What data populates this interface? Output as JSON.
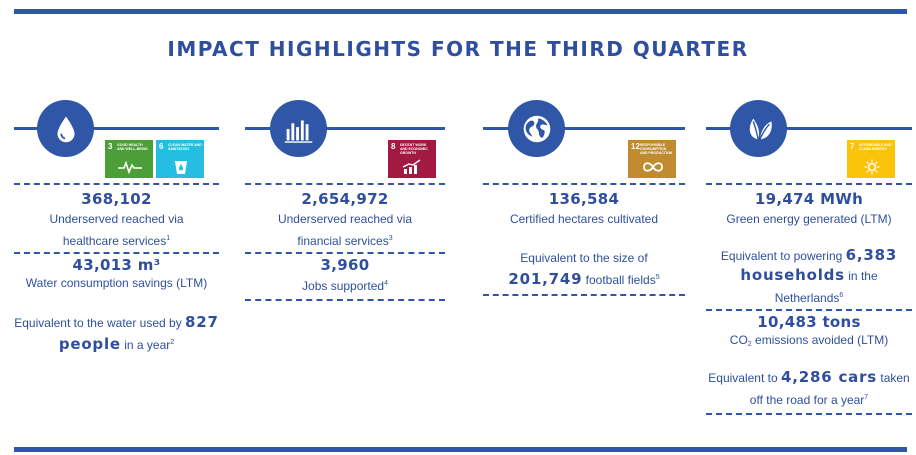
{
  "title": "IMPACT HIGHLIGHTS FOR THE THIRD QUARTER",
  "colors": {
    "primary": "#2f56a7",
    "sdg3": "#4c9f38",
    "sdg6": "#26bde2",
    "sdg8": "#a21942",
    "sdg12": "#bf8b2e",
    "sdg7": "#fcc30b"
  },
  "columns": [
    {
      "icon": "water-drop-icon",
      "sdgs": [
        {
          "num": "3",
          "label": "Good health and well-being",
          "color": "#4c9f38",
          "icon": "heartbeat-icon"
        },
        {
          "num": "6",
          "label": "Clean water and sanitation",
          "color": "#26bde2",
          "icon": "water-glass-icon"
        }
      ],
      "stat1_value": "368,102",
      "stat1_text_a": "Underserved reached via",
      "stat1_text_b": "healthcare services",
      "stat1_note": "1",
      "stat2_value": "43,013 m³",
      "stat2_text": "Water consumption savings (LTM)",
      "eq_prefix": "Equivalent to the water used by",
      "eq_value_a": "827",
      "eq_value_b": "people",
      "eq_suffix": "in a year",
      "eq_note": "2"
    },
    {
      "icon": "bar-chart-icon",
      "sdgs": [
        {
          "num": "8",
          "label": "Decent work and economic growth",
          "color": "#a21942",
          "icon": "growth-chart-icon"
        }
      ],
      "stat1_value": "2,654,972",
      "stat1_text_a": "Underserved reached via",
      "stat1_text_b": "financial services",
      "stat1_note": "3",
      "stat2_value": "3,960",
      "stat2_text": "Jobs supported",
      "stat2_note": "4"
    },
    {
      "icon": "globe-icon",
      "sdgs": [
        {
          "num": "12",
          "label": "Responsible consumption and production",
          "color": "#bf8b2e",
          "icon": "infinity-icon"
        }
      ],
      "stat1_value": "136,584",
      "stat1_text": "Certified hectares cultivated",
      "eq_prefix": "Equivalent to the size of",
      "eq_value": "201,749",
      "eq_suffix": "football fields",
      "eq_note": "5"
    },
    {
      "icon": "leaves-icon",
      "sdgs": [
        {
          "num": "7",
          "label": "Affordable and clean energy",
          "color": "#fcc30b",
          "icon": "sun-icon"
        }
      ],
      "stat1_value": "19,474 MWh",
      "stat1_text": "Green energy generated (LTM)",
      "eq1_prefix": "Equivalent to powering",
      "eq1_value": "6,383",
      "eq1_value_b": "households",
      "eq1_suffix": "in the Netherlands",
      "eq1_note": "6",
      "stat2_value": "10,483 tons",
      "stat2_text_a": "CO",
      "stat2_text_sub": "2",
      "stat2_text_b": " emissions avoided (LTM)",
      "eq2_prefix": "Equivalent to",
      "eq2_value": "4,286 cars",
      "eq2_suffix": "taken",
      "eq2_text_b": "off the road for a year",
      "eq2_note": "7"
    }
  ]
}
